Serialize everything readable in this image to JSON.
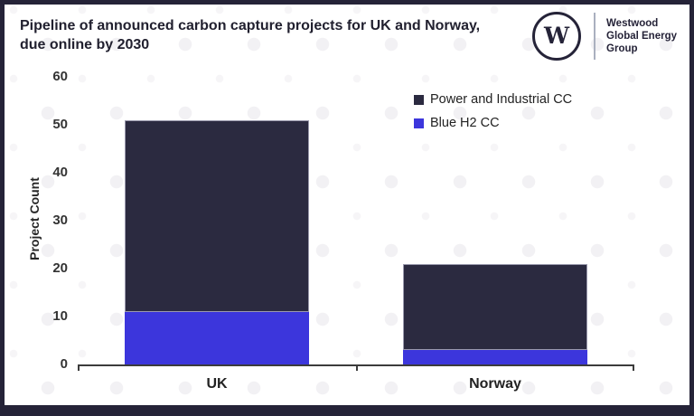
{
  "header": {
    "title": "Pipeline of announced carbon capture projects for UK and Norway,\ndue online by 2030",
    "logo_letter": "W",
    "brand_name": "Westwood\nGlobal Energy\nGroup"
  },
  "chart_data": {
    "type": "bar",
    "stacked": true,
    "title": "Pipeline of announced carbon capture projects for UK and Norway, due online by 2030",
    "categories": [
      "UK",
      "Norway"
    ],
    "series": [
      {
        "name": "Power and Industrial CC",
        "values": [
          40,
          18
        ],
        "color": "#2b2a40"
      },
      {
        "name": "Blue H2 CC",
        "values": [
          11,
          3
        ],
        "color": "#3c36dc"
      }
    ],
    "totals": [
      51,
      21
    ],
    "stack_order_bottom_up": [
      "Blue H2 CC",
      "Power and Industrial CC"
    ],
    "xlabel": "",
    "ylabel": "Project Count",
    "ylim": [
      0,
      60
    ],
    "ytick_step": 10,
    "ytick_labels": [
      "0",
      "10",
      "20",
      "30",
      "40",
      "50",
      "60"
    ],
    "grid": false,
    "legend_position": "top-right"
  },
  "colors": {
    "frame_border": "#252338",
    "background": "#ffffff",
    "dot_pattern": "#f2f1f4",
    "axis_line": "#3c3c3c",
    "text": "#222222"
  }
}
